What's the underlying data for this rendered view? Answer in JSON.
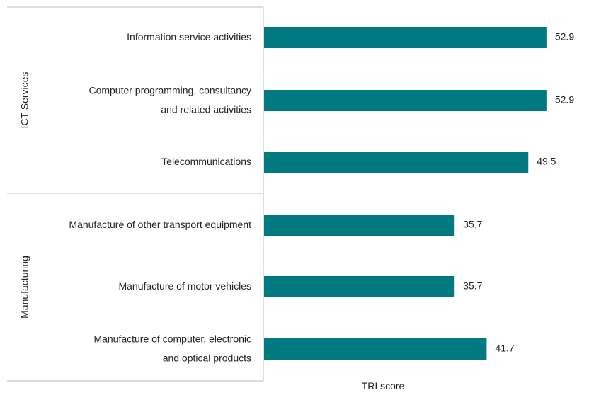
{
  "chart_data": {
    "type": "bar",
    "orientation": "horizontal",
    "xlabel": "TRI score",
    "xlim": [
      0,
      60
    ],
    "grid": false,
    "color": "#007a80",
    "groups": [
      {
        "name": "ICT Services",
        "categories": [
          [
            "Information service activities"
          ],
          [
            "Computer programming, consultancy",
            "and related activities"
          ],
          [
            "Telecommunications"
          ]
        ],
        "values": [
          52.9,
          52.9,
          49.5
        ],
        "value_labels": [
          "52.9",
          "52.9",
          "49.5"
        ]
      },
      {
        "name": "Manufacturing",
        "categories": [
          [
            "Manufacture of other transport equipment"
          ],
          [
            "Manufacture of motor vehicles"
          ],
          [
            "Manufacture of computer, electronic",
            "and optical products"
          ]
        ],
        "values": [
          35.7,
          35.7,
          41.7
        ],
        "value_labels": [
          "35.7",
          "35.7",
          "41.7"
        ]
      }
    ]
  }
}
